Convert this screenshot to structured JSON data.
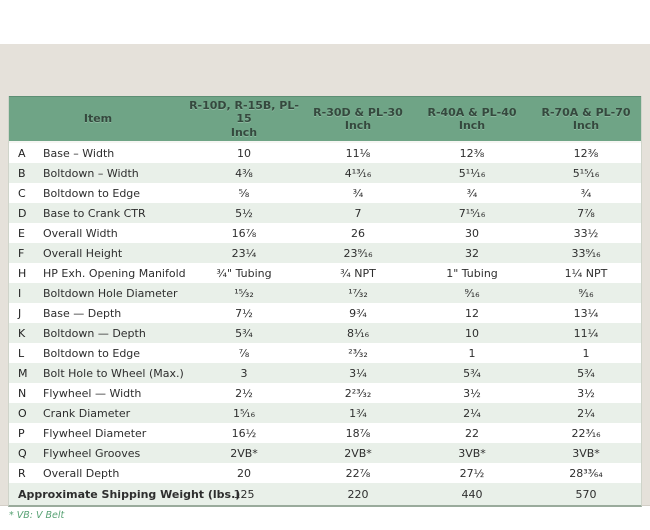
{
  "page": {
    "background": "#ffffff",
    "panel_bg": "#e5e1da",
    "header_green": "#6fa486",
    "alt_row_green": "#e9f0e9"
  },
  "table": {
    "header": {
      "item_label": "Item",
      "columns": [
        {
          "models": "R-10D, R-15B, PL-15",
          "unit": "Inch"
        },
        {
          "models": "R-30D & PL-30",
          "unit": "Inch"
        },
        {
          "models": "R-40A & PL-40",
          "unit": "Inch"
        },
        {
          "models": "R-70A & PL-70",
          "unit": "Inch"
        }
      ]
    },
    "rows": [
      {
        "letter": "A",
        "item": "Base – Width",
        "values": [
          "10",
          "11⅛",
          "12⅜",
          "12⅜"
        ]
      },
      {
        "letter": "B",
        "item": "Boltdown – Width",
        "values": [
          "4⅜",
          "4¹³⁄₁₆",
          "5¹¹⁄₁₆",
          "5¹⁵⁄₁₆"
        ]
      },
      {
        "letter": "C",
        "item": "Boltdown to Edge",
        "values": [
          "⅝",
          "¾",
          "¾",
          "¾"
        ]
      },
      {
        "letter": "D",
        "item": "Base to Crank CTR",
        "values": [
          "5½",
          "7",
          "7¹⁵⁄₁₆",
          "7⅞"
        ]
      },
      {
        "letter": "E",
        "item": "Overall Width",
        "values": [
          "16⅞",
          "26",
          "30",
          "33½"
        ]
      },
      {
        "letter": "F",
        "item": "Overall Height",
        "values": [
          "23¼",
          "23⁹⁄₁₆",
          "32",
          "33⁹⁄₁₆"
        ]
      },
      {
        "letter": "H",
        "item": "HP Exh. Opening Manifold",
        "values": [
          "¾\" Tubing",
          "¾ NPT",
          "1\" Tubing",
          "1¼ NPT"
        ]
      },
      {
        "letter": "I",
        "item": "Boltdown Hole Diameter",
        "values": [
          "¹⁵⁄₃₂",
          "¹⁷⁄₃₂",
          "⁹⁄₁₆",
          "⁹⁄₁₆"
        ]
      },
      {
        "letter": "J",
        "item": "Base — Depth",
        "values": [
          "7½",
          "9¾",
          "12",
          "13¼"
        ]
      },
      {
        "letter": "K",
        "item": "Boltdown — Depth",
        "values": [
          "5¾",
          "8¹⁄₁₆",
          "10",
          "11¼"
        ]
      },
      {
        "letter": "L",
        "item": "Boltdown to Edge",
        "values": [
          "⅞",
          "²³⁄₃₂",
          "1",
          "1"
        ]
      },
      {
        "letter": "M",
        "item": "Bolt Hole to Wheel (Max.)",
        "values": [
          "3",
          "3¼",
          "5¾",
          "5¾"
        ]
      },
      {
        "letter": "N",
        "item": "Flywheel — Width",
        "values": [
          "2½",
          "2²³⁄₃₂",
          "3½",
          "3½"
        ]
      },
      {
        "letter": "O",
        "item": "Crank Diameter",
        "values": [
          "1⁵⁄₁₆",
          "1¾",
          "2¼",
          "2¼"
        ]
      },
      {
        "letter": "P",
        "item": "Flywheel Diameter",
        "values": [
          "16½",
          "18⅞",
          "22",
          "22³⁄₁₆"
        ]
      },
      {
        "letter": "Q",
        "item": "Flywheel Grooves",
        "values": [
          "2VB*",
          "2VB*",
          "3VB*",
          "3VB*"
        ]
      },
      {
        "letter": "R",
        "item": "Overall Depth",
        "values": [
          "20",
          "22⅞",
          "27½",
          "28³³⁄₆₄"
        ]
      }
    ],
    "footer_row": {
      "label": "Approximate Shipping Weight (lbs.)",
      "values": [
        "125",
        "220",
        "440",
        "570"
      ]
    },
    "footnote": "* VB: V Belt"
  }
}
